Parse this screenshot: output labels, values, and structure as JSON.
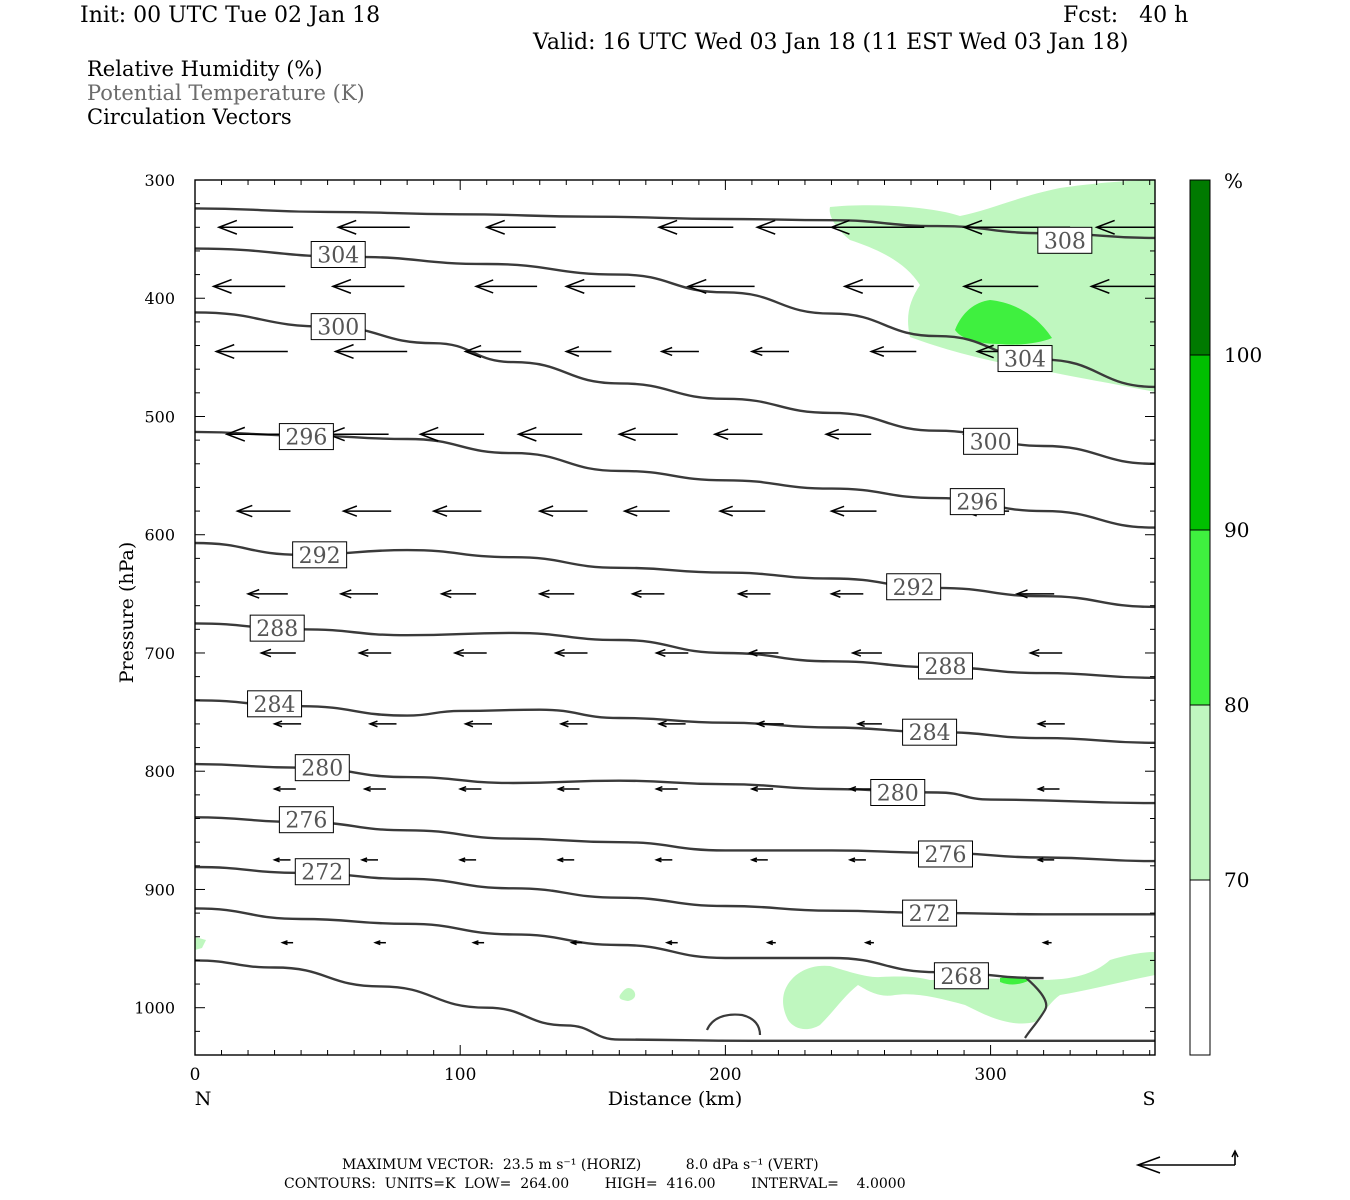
{
  "header": {
    "init": "Init: 00 UTC Tue 02 Jan 18",
    "fcst": "Fcst:   40 h",
    "valid": "Valid: 16 UTC Wed 03 Jan 18 (11 EST Wed 03 Jan 18)"
  },
  "legend": [
    "Relative Humidity (%)",
    "Potential Temperature (K)",
    "Circulation Vectors"
  ],
  "colors": {
    "rh_70_80": "#bff7bf",
    "rh_80_90": "#3ff03f",
    "rh_90_100": "#00bf00",
    "rh_100": "#007a00",
    "contour": "#3a3a3a",
    "legend_gray": "#6b6b6b"
  },
  "chart_data": {
    "type": "contour",
    "xlabel": "Distance (km)",
    "ylabel": "Pressure (hPa)",
    "xlim": [
      0,
      362
    ],
    "ylim": [
      300,
      1040
    ],
    "y_scale": "linear, inverted (pressure increases downward)",
    "x_ticks": [
      0,
      100,
      200,
      300
    ],
    "y_ticks": [
      300,
      400,
      500,
      600,
      700,
      800,
      900,
      1000
    ],
    "x_end_labels": {
      "left": "N",
      "right": "S"
    },
    "colorbar": {
      "unit": "%",
      "levels": [
        70,
        80,
        90,
        100
      ],
      "tick_labels": [
        "70",
        "80",
        "90",
        "100"
      ]
    },
    "theta_contours": [
      {
        "label": "304",
        "label_positions": [
          [
            54,
            363
          ],
          [
            313,
            451
          ]
        ],
        "points": [
          [
            0,
            358
          ],
          [
            60,
            365
          ],
          [
            110,
            371
          ],
          [
            160,
            380
          ],
          [
            200,
            395
          ],
          [
            240,
            413
          ],
          [
            280,
            432
          ],
          [
            320,
            452
          ],
          [
            362,
            475
          ]
        ]
      },
      {
        "label": "300",
        "label_positions": [
          [
            54,
            424
          ],
          [
            300,
            521
          ]
        ],
        "points": [
          [
            0,
            412
          ],
          [
            50,
            424
          ],
          [
            90,
            438
          ],
          [
            120,
            454
          ],
          [
            160,
            472
          ],
          [
            200,
            485
          ],
          [
            240,
            497
          ],
          [
            280,
            512
          ],
          [
            320,
            525
          ],
          [
            362,
            540
          ]
        ]
      },
      {
        "label": "296",
        "label_positions": [
          [
            42,
            517
          ],
          [
            295,
            572
          ]
        ],
        "points": [
          [
            0,
            513
          ],
          [
            40,
            516
          ],
          [
            80,
            519
          ],
          [
            120,
            531
          ],
          [
            160,
            546
          ],
          [
            200,
            554
          ],
          [
            240,
            561
          ],
          [
            280,
            569
          ],
          [
            320,
            580
          ],
          [
            362,
            594
          ]
        ]
      },
      {
        "label": "292",
        "label_positions": [
          [
            47,
            617
          ],
          [
            271,
            644
          ]
        ],
        "points": [
          [
            0,
            607
          ],
          [
            40,
            617
          ],
          [
            80,
            613
          ],
          [
            120,
            619
          ],
          [
            160,
            628
          ],
          [
            200,
            632
          ],
          [
            240,
            637
          ],
          [
            280,
            645
          ],
          [
            320,
            652
          ],
          [
            362,
            661
          ]
        ]
      },
      {
        "label": "288",
        "label_positions": [
          [
            31,
            679
          ],
          [
            283,
            711
          ]
        ],
        "points": [
          [
            0,
            675
          ],
          [
            40,
            680
          ],
          [
            80,
            685
          ],
          [
            120,
            683
          ],
          [
            160,
            689
          ],
          [
            200,
            700
          ],
          [
            240,
            707
          ],
          [
            280,
            712
          ],
          [
            320,
            717
          ],
          [
            362,
            721
          ]
        ]
      },
      {
        "label": "284",
        "label_positions": [
          [
            30,
            743
          ],
          [
            277,
            767
          ]
        ],
        "points": [
          [
            0,
            740
          ],
          [
            40,
            745
          ],
          [
            80,
            753
          ],
          [
            100,
            749
          ],
          [
            130,
            748
          ],
          [
            160,
            755
          ],
          [
            200,
            759
          ],
          [
            240,
            763
          ],
          [
            280,
            767
          ],
          [
            320,
            772
          ],
          [
            362,
            776
          ]
        ]
      },
      {
        "label": "280",
        "label_positions": [
          [
            48,
            797
          ],
          [
            265,
            818
          ]
        ],
        "points": [
          [
            0,
            794
          ],
          [
            40,
            797
          ],
          [
            80,
            805
          ],
          [
            120,
            810
          ],
          [
            160,
            808
          ],
          [
            200,
            811
          ],
          [
            240,
            815
          ],
          [
            280,
            818
          ],
          [
            300,
            824
          ],
          [
            362,
            827
          ]
        ]
      },
      {
        "label": "276",
        "label_positions": [
          [
            42,
            841
          ],
          [
            283,
            870
          ]
        ],
        "points": [
          [
            0,
            839
          ],
          [
            40,
            843
          ],
          [
            80,
            850
          ],
          [
            120,
            857
          ],
          [
            160,
            860
          ],
          [
            200,
            867
          ],
          [
            240,
            867
          ],
          [
            280,
            869
          ],
          [
            320,
            873
          ],
          [
            362,
            876
          ]
        ]
      },
      {
        "label": "272",
        "label_positions": [
          [
            48,
            885
          ],
          [
            277,
            920
          ]
        ],
        "points": [
          [
            0,
            881
          ],
          [
            40,
            886
          ],
          [
            80,
            891
          ],
          [
            120,
            899
          ],
          [
            160,
            907
          ],
          [
            200,
            914
          ],
          [
            240,
            918
          ],
          [
            280,
            920
          ],
          [
            320,
            921
          ],
          [
            362,
            921
          ]
        ]
      },
      {
        "label": "268",
        "label_positions": [
          [
            289,
            973
          ]
        ],
        "points": [
          [
            0,
            916
          ],
          [
            40,
            925
          ],
          [
            80,
            929
          ],
          [
            120,
            938
          ],
          [
            160,
            947
          ],
          [
            200,
            958
          ],
          [
            240,
            958
          ],
          [
            280,
            970
          ],
          [
            320,
            975
          ]
        ]
      },
      {
        "label": "",
        "label_positions": [],
        "points": [
          [
            0,
            960
          ],
          [
            30,
            966
          ],
          [
            70,
            982
          ],
          [
            110,
            1000
          ],
          [
            140,
            1015
          ],
          [
            160,
            1027
          ],
          [
            210,
            1028
          ],
          [
            260,
            1028
          ],
          [
            320,
            1028
          ],
          [
            362,
            1028
          ]
        ]
      },
      {
        "label": "308",
        "label_positions": [
          [
            328,
            351
          ]
        ],
        "points": [
          [
            0,
            324
          ],
          [
            50,
            327
          ],
          [
            100,
            329
          ],
          [
            150,
            331
          ],
          [
            200,
            333
          ],
          [
            240,
            334
          ],
          [
            280,
            339
          ],
          [
            320,
            345
          ],
          [
            362,
            349
          ]
        ]
      }
    ],
    "wind_vectors": [
      {
        "p": 340,
        "x": [
          9,
          54,
          110,
          175,
          212,
          240,
          290,
          340
        ],
        "dx": [
          -28,
          -27,
          -26,
          -28,
          -32,
          -35,
          -40,
          -38
        ]
      },
      {
        "p": 390,
        "x": [
          7,
          52,
          106,
          140,
          186,
          245,
          290,
          338
        ],
        "dx": [
          -27,
          -27,
          -23,
          -26,
          -25,
          -26,
          -28,
          -30
        ]
      },
      {
        "p": 445,
        "x": [
          8,
          53,
          102,
          140,
          176,
          210,
          255,
          295
        ],
        "dx": [
          -27,
          -27,
          -21,
          -17,
          -14,
          -14,
          -17,
          -22
        ]
      },
      {
        "p": 515,
        "x": [
          12,
          50,
          85,
          122,
          160,
          196,
          238,
          290
        ],
        "dx": [
          -25,
          -23,
          -24,
          -24,
          -22,
          -18,
          -17,
          -15
        ]
      },
      {
        "p": 580,
        "x": [
          16,
          56,
          90,
          130,
          162,
          198,
          240,
          290
        ],
        "dx": [
          -20,
          -18,
          -18,
          -18,
          -17,
          -17,
          -17,
          -17
        ]
      },
      {
        "p": 650,
        "x": [
          20,
          55,
          93,
          130,
          165,
          205,
          240,
          310
        ],
        "dx": [
          -15,
          -14,
          -13,
          -13,
          -12,
          -12,
          -12,
          -14
        ]
      },
      {
        "p": 700,
        "x": [
          25,
          62,
          98,
          136,
          174,
          209,
          248,
          315
        ],
        "dx": [
          -13,
          -12,
          -12,
          -12,
          -12,
          -11,
          -11,
          -12
        ]
      },
      {
        "p": 760,
        "x": [
          30,
          66,
          102,
          138,
          175,
          212,
          250,
          318
        ],
        "dx": [
          -10,
          -10,
          -10,
          -10,
          -10,
          -10,
          -9,
          -10
        ]
      },
      {
        "p": 815,
        "x": [
          30,
          64,
          100,
          137,
          174,
          210,
          247,
          318
        ],
        "dx": [
          -8,
          -8,
          -8,
          -8,
          -8,
          -8,
          -8,
          -8
        ]
      },
      {
        "p": 875,
        "x": [
          30,
          63,
          100,
          137,
          174,
          210,
          247,
          318
        ],
        "dx": [
          -6,
          -6,
          -6,
          -6,
          -6,
          -6,
          -6,
          -6
        ]
      },
      {
        "p": 945,
        "x": [
          33,
          68,
          105,
          142,
          178,
          216,
          253,
          320
        ],
        "dx": [
          -4,
          -4,
          -4,
          -4,
          -4,
          -3,
          -3,
          -3
        ]
      }
    ]
  },
  "footer": {
    "max_vector": "MAXIMUM VECTOR:  23.5 m s⁻¹ (HORIZ)          8.0 dPa s⁻¹ (VERT)",
    "contours": "CONTOURS:  UNITS=K  LOW=  264.00        HIGH=  416.00        INTERVAL=    4.0000"
  }
}
